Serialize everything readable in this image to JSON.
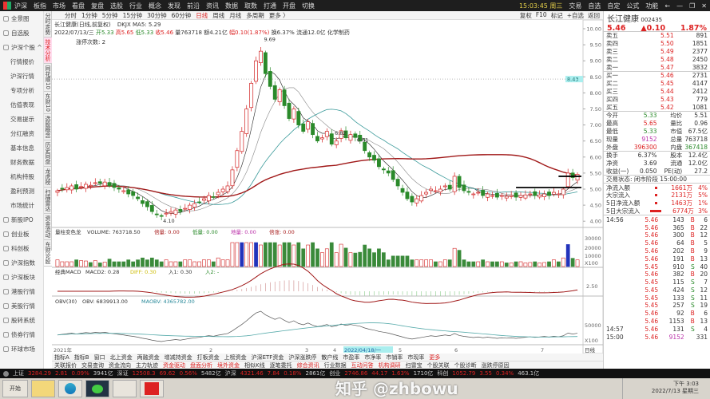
{
  "menu": [
    "沪深",
    "板指",
    "市场",
    "看盘",
    "复盘",
    "选股",
    "行业",
    "概念",
    "发现",
    "前沿",
    "资讯",
    "数据",
    "取数",
    "打通",
    "开盘",
    "切换"
  ],
  "topright": {
    "clock": "15:03:45 周三",
    "items": [
      "交易",
      "自选",
      "自定",
      "公式",
      "功能"
    ]
  },
  "sidebar": [
    {
      "label": "全景图",
      "sub": false
    },
    {
      "label": "自选股",
      "sub": false
    },
    {
      "label": "沪深个股 ^",
      "sub": false
    },
    {
      "label": "行情报价",
      "sub": true
    },
    {
      "label": "沪深行情",
      "sub": true
    },
    {
      "label": "专项分析",
      "sub": true
    },
    {
      "label": "估值表现",
      "sub": true
    },
    {
      "label": "交易提示",
      "sub": true
    },
    {
      "label": "分红融资",
      "sub": true
    },
    {
      "label": "基本信息",
      "sub": true
    },
    {
      "label": "财务数据",
      "sub": true
    },
    {
      "label": "机构持股",
      "sub": true
    },
    {
      "label": "盈利预测",
      "sub": true
    },
    {
      "label": "市场统计",
      "sub": true
    },
    {
      "label": "新股IPO",
      "sub": false
    },
    {
      "label": "创业板",
      "sub": false
    },
    {
      "label": "科创板",
      "sub": false
    },
    {
      "label": "沪深指数",
      "sub": false
    },
    {
      "label": "沪深板块",
      "sub": false
    },
    {
      "label": "港股行情",
      "sub": false
    },
    {
      "label": "美股行情",
      "sub": false
    },
    {
      "label": "股转系统",
      "sub": false
    },
    {
      "label": "债券行情",
      "sub": false
    },
    {
      "label": "环球市场",
      "sub": false
    }
  ],
  "vtabs": [
    {
      "label": "分时走势",
      "on": false
    },
    {
      "label": "技术分析",
      "on": true
    },
    {
      "label": "同花顺10",
      "on": false
    },
    {
      "label": "东财10",
      "on": false
    },
    {
      "label": "选股概念",
      "on": false
    },
    {
      "label": "历史同盘",
      "on": false
    },
    {
      "label": "龙虎榜",
      "on": false
    },
    {
      "label": "扫描雷达",
      "on": false
    },
    {
      "label": "资金流动",
      "on": false
    },
    {
      "label": "东财论股",
      "on": false
    }
  ],
  "periods": [
    {
      "label": "分时",
      "on": false
    },
    {
      "label": "1分钟",
      "on": false
    },
    {
      "label": "5分钟",
      "on": false
    },
    {
      "label": "15分钟",
      "on": false
    },
    {
      "label": "30分钟",
      "on": false
    },
    {
      "label": "60分钟",
      "on": false
    },
    {
      "label": "日线",
      "on": true
    },
    {
      "label": "周线",
      "on": false
    },
    {
      "label": "月线",
      "on": false
    },
    {
      "label": "多周期",
      "on": false
    },
    {
      "label": "更多 〉",
      "on": false
    }
  ],
  "period_right": [
    "复权",
    "F10",
    "标记",
    "+自选",
    "返回"
  ],
  "info": {
    "name": "长江健康(日线,前复权)",
    "indicator": "DKJX MA5: 5.29",
    "date": "2022/07/13/三",
    "open": "开5.33",
    "high": "高5.65",
    "low": "低5.33",
    "close": "收5.46",
    "vol": "量763718",
    "amt": "额4.21亿",
    "chg": "幅0.10(1.87%)",
    "turn": "换6.37%",
    "float": "流通12.0亿 化学制药",
    "limit": "涨停次数: 2"
  },
  "chart_labels": {
    "high": "9.69",
    "low": "4.10",
    "mid1": "6.82",
    "mid2": "6.61",
    "cursor_price": "8.43"
  },
  "price_axis": [
    "10.00",
    "9.50",
    "9.00",
    "8.50",
    "8.00",
    "7.50",
    "7.00",
    "6.50",
    "6.00",
    "5.50",
    "5.00",
    "4.50",
    "4.00"
  ],
  "price_closes": [
    4.95,
    5.0,
    5.05,
    5.1,
    5.0,
    5.08,
    5.15,
    5.12,
    5.2,
    5.18,
    5.22,
    5.1,
    5.05,
    5.0,
    4.95,
    4.85,
    4.8,
    4.7,
    4.55,
    4.45,
    4.3,
    4.2,
    4.15,
    4.25,
    4.3,
    4.35,
    4.3,
    4.4,
    4.5,
    4.55,
    4.6,
    4.7,
    4.8,
    4.75,
    4.9,
    5.0,
    5.1,
    5.6,
    6.2,
    6.8,
    7.5,
    8.3,
    9.0,
    9.3,
    8.6,
    8.2,
    7.8,
    8.1,
    7.6,
    7.2,
    7.5,
    7.0,
    6.8,
    7.1,
    6.7,
    6.5,
    6.6,
    6.8,
    6.4,
    6.5,
    6.82,
    6.6,
    6.7,
    6.61,
    6.5,
    6.2,
    6.0,
    5.9,
    5.7,
    5.6,
    5.5,
    5.3,
    5.1,
    4.9,
    4.7,
    4.6,
    4.7,
    4.8,
    4.9,
    5.0,
    4.95,
    5.0,
    5.1,
    5.0,
    5.4,
    5.05,
    4.95,
    4.9,
    4.85,
    4.9,
    4.8,
    4.85,
    4.8,
    4.75,
    4.8,
    4.78,
    4.8,
    4.75,
    4.8,
    4.82,
    4.85,
    4.8,
    4.82,
    4.85,
    4.8,
    4.9,
    4.85,
    5.0,
    5.5,
    5.36,
    5.46
  ],
  "volume": {
    "title": "量柱变色龙",
    "label": "VOLUME: 763718.50",
    "v1": "倍量: 0.00",
    "v2": "低量: 0.00",
    "v3": "地量: 0.00",
    "v4": "倍涨: 0.00",
    "axis": [
      "30000",
      "20000",
      "10000",
      "X100"
    ]
  },
  "macd": {
    "title": "经典MACD",
    "label": "MACD2: 0.28",
    "v1": "DIFF: 0.30",
    "v2": "入1: 0.30",
    "v3": "入2: -",
    "axis": "2.50"
  },
  "obv": {
    "title": "OBV(30)",
    "label": "OBV: 6839913.00",
    "mao": "MAOBV: 4365782.00",
    "axis": [
      "50000",
      "X100"
    ]
  },
  "dates": [
    "2021年",
    "2",
    "3",
    "4",
    "2022/04/18/一",
    "5",
    "6",
    "7"
  ],
  "date_axis_btn": "日线",
  "btabs1": [
    {
      "label": "指标A",
      "c": ""
    },
    {
      "label": "指标B",
      "c": ""
    },
    {
      "label": "窗口",
      "c": ""
    },
    {
      "label": "北上资金",
      "c": ""
    },
    {
      "label": "两融资金",
      "c": ""
    },
    {
      "label": "增减持资金",
      "c": ""
    },
    {
      "label": "打板资金",
      "c": ""
    },
    {
      "label": "上榜资金",
      "c": ""
    },
    {
      "label": "沪深ETF资金",
      "c": ""
    },
    {
      "label": "沪深涨跌停",
      "c": ""
    },
    {
      "label": "散户线",
      "c": ""
    },
    {
      "label": "市盈率",
      "c": ""
    },
    {
      "label": "市净率",
      "c": ""
    },
    {
      "label": "市销率",
      "c": ""
    },
    {
      "label": "市现率",
      "c": ""
    },
    {
      "label": "更多",
      "c": "r"
    }
  ],
  "btabs2": [
    {
      "label": "关联报价",
      "c": ""
    },
    {
      "label": "交易查询",
      "c": ""
    },
    {
      "label": "资金流向",
      "c": ""
    },
    {
      "label": "主力轨迹",
      "c": ""
    },
    {
      "label": "资金驱动",
      "c": "r"
    },
    {
      "label": "盘面分析",
      "c": "r"
    },
    {
      "label": "境外资金",
      "c": "r"
    },
    {
      "label": "相似K线",
      "c": ""
    },
    {
      "label": "逐笔委托",
      "c": ""
    },
    {
      "label": "综合资讯",
      "c": "r"
    },
    {
      "label": "行业数据",
      "c": ""
    },
    {
      "label": "互动问答",
      "c": "r"
    },
    {
      "label": "机构调研",
      "c": "r"
    },
    {
      "label": "扫雷宝",
      "c": ""
    },
    {
      "label": "个股关联",
      "c": ""
    },
    {
      "label": "个股诊断",
      "c": ""
    },
    {
      "label": "涨跌停原因",
      "c": ""
    }
  ],
  "ticker": [
    {
      "name": "上证",
      "v": "3284.29",
      "c": "2.81",
      "p": "0.09%",
      "a": "3941亿"
    },
    {
      "name": "深证",
      "v": "12508.3",
      "c": "69.62",
      "p": "0.56%",
      "a": "5482亿"
    },
    {
      "name": "沪深",
      "v": "4321.46",
      "c": "7.84",
      "p": "0.18%",
      "a": "2861亿"
    },
    {
      "name": "创业",
      "v": "2746.86",
      "c": "44.17",
      "p": "1.63%",
      "a": "1710亿"
    },
    {
      "name": "科创",
      "v": "1052.79",
      "c": "3.55",
      "p": "0.34%",
      "a": "463.1亿"
    }
  ],
  "taskbar": {
    "start": "开始",
    "time": "下午 3:03",
    "date": "2022/7/13 星期三"
  },
  "watermark": "知乎 @zhbowu",
  "quote": {
    "name": "长江健康",
    "code": "002435",
    "price": "5.46",
    "change": "▲0.10",
    "pct": "1.87%"
  },
  "asks": [
    [
      "卖五",
      "5.51",
      "891"
    ],
    [
      "卖四",
      "5.50",
      "1851"
    ],
    [
      "卖三",
      "5.49",
      "2377"
    ],
    [
      "卖二",
      "5.48",
      "2450"
    ],
    [
      "卖一",
      "5.47",
      "3832"
    ]
  ],
  "bids": [
    [
      "买一",
      "5.46",
      "2731"
    ],
    [
      "买二",
      "5.45",
      "4147"
    ],
    [
      "买三",
      "5.44",
      "2412"
    ],
    [
      "买四",
      "5.43",
      "779"
    ],
    [
      "买五",
      "5.42",
      "1081"
    ]
  ],
  "stats1": [
    [
      "今开",
      "5.33",
      "均价",
      "5.51"
    ],
    [
      "最高",
      "5.65",
      "量比",
      "0.96"
    ],
    [
      "最低",
      "5.33",
      "市值",
      "67.5亿"
    ],
    [
      "现量",
      "9152",
      "总量",
      "763718"
    ],
    [
      "外盘",
      "396300",
      "内盘",
      "367418"
    ]
  ],
  "stats2": [
    [
      "换手",
      "6.37%",
      "股本",
      "12.4亿"
    ],
    [
      "净资",
      "3.69",
      "流通",
      "12.0亿"
    ],
    [
      "收益(一)",
      "0.050",
      "PE(动)",
      "27.2"
    ]
  ],
  "trade_status": "交易状态: 闭市阶段 15:00:00",
  "flows": [
    [
      "净流入额",
      "1661万",
      "4%"
    ],
    [
      "大宗流入",
      "2131万",
      "5%"
    ],
    [
      "5日净流入额",
      "1463万",
      "1%"
    ],
    [
      "5日大宗流入",
      "6774万",
      "3%"
    ]
  ],
  "ticks": [
    [
      "14:56",
      "5.46",
      "143",
      "B",
      "6"
    ],
    [
      "",
      "5.46",
      "365",
      "B",
      "22"
    ],
    [
      "",
      "5.46",
      "300",
      "B",
      "12"
    ],
    [
      "",
      "5.46",
      "64",
      "B",
      "5"
    ],
    [
      "",
      "5.46",
      "202",
      "B",
      "9"
    ],
    [
      "",
      "5.46",
      "191",
      "B",
      "13"
    ],
    [
      "",
      "5.45",
      "910",
      "S",
      "40"
    ],
    [
      "",
      "5.46",
      "382",
      "B",
      "20"
    ],
    [
      "",
      "5.45",
      "115",
      "S",
      "7"
    ],
    [
      "",
      "5.45",
      "424",
      "S",
      "12"
    ],
    [
      "",
      "5.45",
      "133",
      "S",
      "11"
    ],
    [
      "",
      "5.45",
      "257",
      "S",
      "19"
    ],
    [
      "",
      "5.46",
      "92",
      "B",
      "6"
    ],
    [
      "",
      "5.46",
      "1153",
      "B",
      "13"
    ],
    [
      "14:57",
      "5.46",
      "131",
      "S",
      "4"
    ],
    [
      "15:00",
      "5.46",
      "9152",
      "",
      "331"
    ]
  ],
  "colors": {
    "up": "#d22222",
    "down": "#2a8a2a",
    "bg": "#ffffff",
    "menu": "#1e1e1e",
    "ma_red": "#a01818",
    "ma_teal": "#3a9a9a"
  }
}
